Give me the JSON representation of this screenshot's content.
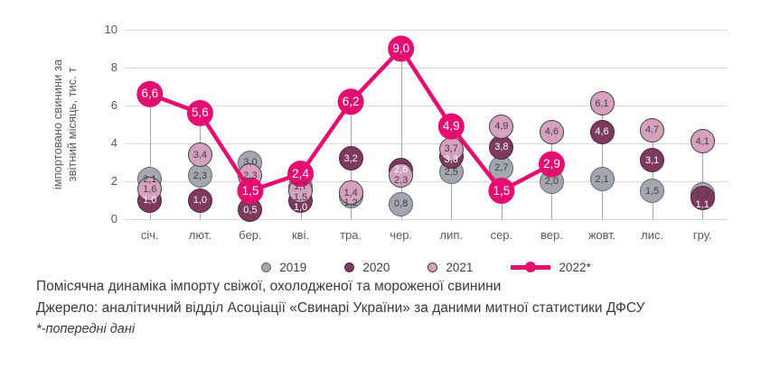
{
  "chart_data": {
    "type": "line",
    "title": "Помісячна динаміка імпорту свіжої, охолодженої та мороженої свинини",
    "ylabel_lines": [
      "імпортовано свинини за",
      "звітний місяць, тис. т"
    ],
    "xlabel": "",
    "ylim": [
      0,
      10
    ],
    "yticks": [
      "0",
      "2",
      "4",
      "6",
      "8",
      "10"
    ],
    "ytick_values": [
      0,
      2,
      4,
      6,
      8,
      10
    ],
    "grid": true,
    "legend_position": "bottom",
    "categories": [
      "січ.",
      "лют.",
      "бер.",
      "кві.",
      "тра.",
      "чер.",
      "лип.",
      "сер.",
      "вер.",
      "жовт.",
      "лис.",
      "гру."
    ],
    "series": [
      {
        "name": "2019",
        "kind": "bubble",
        "color": "#a2a8ad",
        "border": "#5b6875",
        "label_color": "#404040",
        "values": [
          2.1,
          2.3,
          3.0,
          1.7,
          1.2,
          0.8,
          2.5,
          2.7,
          2.0,
          2.1,
          1.5,
          1.3
        ],
        "labels": [
          "2,1",
          "2,3",
          "3,0",
          "1,7",
          "1,2",
          "0,8",
          "2,5",
          "2,7",
          "2,0",
          "2,1",
          "1,5",
          "1,3"
        ]
      },
      {
        "name": "2020",
        "kind": "bubble",
        "color": "#7d3a5e",
        "border": "#522442",
        "label_color": "#ffffff",
        "values": [
          1.0,
          1.0,
          0.5,
          1.0,
          3.2,
          2.6,
          3.3,
          3.8,
          null,
          4.6,
          3.1,
          1.1
        ],
        "labels": [
          "1,0",
          "1,0",
          "0,5",
          "1,0",
          "3,2",
          "2,6",
          "3,3",
          "3,8",
          null,
          "4,6",
          "3,1",
          "1,1"
        ]
      },
      {
        "name": "2021",
        "kind": "bubble",
        "color": "#d6a0bf",
        "border": "#3f3f3f",
        "label_color": "#404040",
        "values": [
          1.6,
          3.4,
          2.3,
          1.5,
          1.4,
          2.3,
          3.7,
          4.9,
          4.6,
          6.1,
          4.7,
          4.1
        ],
        "labels": [
          "1,6",
          "3,4",
          "2,3",
          "1,5",
          "1,4",
          "2,3",
          "3,7",
          "4,9",
          "4,6",
          "6,1",
          "4,7",
          "4,1"
        ]
      },
      {
        "name": "2022*",
        "kind": "line",
        "color": "#e60d70",
        "border": "#e60d70",
        "label_color": "#ffffff",
        "values": [
          6.6,
          5.6,
          1.5,
          2.4,
          6.2,
          9.0,
          4.9,
          1.5,
          2.9,
          null,
          null,
          null
        ],
        "labels": [
          "6,6",
          "5,6",
          "1,5",
          "2,4",
          "6,2",
          "9,0",
          "4,9",
          "1,5",
          "2,9",
          null,
          null,
          null
        ]
      }
    ]
  },
  "colors": {
    "gridline": "#d9d9d9",
    "stem": "#a6a6a6",
    "axis_text": "#595959",
    "caption_text": "#3b3b3b"
  },
  "captions": {
    "title": "Помісячна динаміка імпорту свіжої, охолодженої та мороженої свинини",
    "source": "Джерело: аналітичний відділ Асоціації «Свинарі України» за даними митної статистики ДФСУ",
    "footnote": "*-попередні дані"
  }
}
